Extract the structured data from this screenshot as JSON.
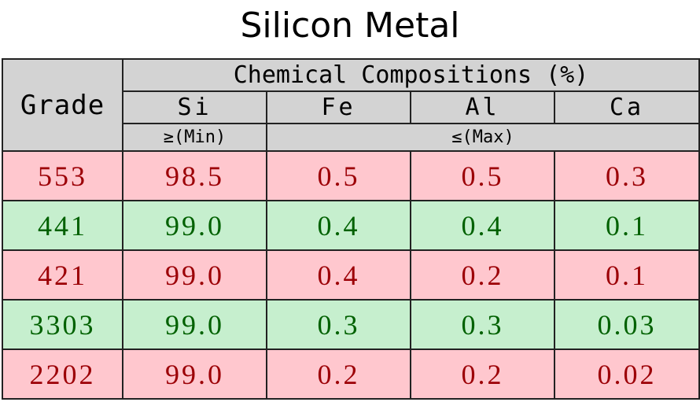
{
  "title": "Silicon Metal",
  "header": {
    "grade": "Grade",
    "chemical": "Chemical Compositions (%)",
    "elements": [
      "Si",
      "Fe",
      "Al",
      "Ca"
    ],
    "min_label": "≥(Min)",
    "max_label": "≤(Max)"
  },
  "rows": [
    {
      "grade": "553",
      "si": "98.5",
      "fe": "0.5",
      "al": "0.5",
      "ca": "0.3",
      "status": "red"
    },
    {
      "grade": "441",
      "si": "99.0",
      "fe": "0.4",
      "al": "0.4",
      "ca": "0.1",
      "status": "green"
    },
    {
      "grade": "421",
      "si": "99.0",
      "fe": "0.4",
      "al": "0.2",
      "ca": "0.1",
      "status": "red"
    },
    {
      "grade": "3303",
      "si": "99.0",
      "fe": "0.3",
      "al": "0.3",
      "ca": "0.03",
      "status": "green"
    },
    {
      "grade": "2202",
      "si": "99.0",
      "fe": "0.2",
      "al": "0.2",
      "ca": "0.02",
      "status": "red"
    }
  ],
  "colors": {
    "header_bg": "#d3d3d3",
    "red_fill": "#ffc7ce",
    "red_text": "#9c0006",
    "green_fill": "#c6efce",
    "green_text": "#006100",
    "border": "#222222"
  }
}
